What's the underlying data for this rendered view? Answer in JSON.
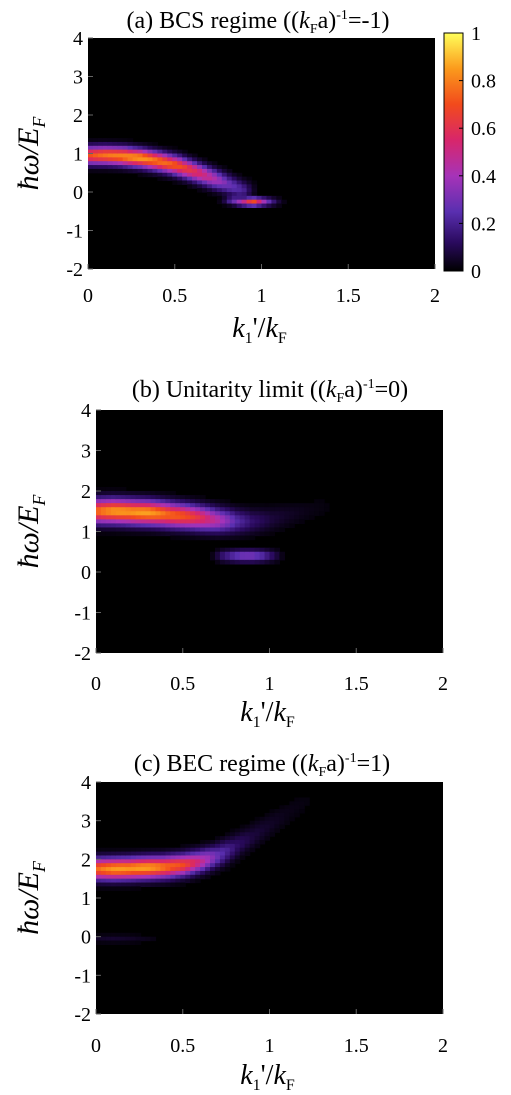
{
  "chart_data": [
    {
      "type": "heatmap",
      "title": "(a) BCS regime ((kFa)-1=-1)",
      "title_parts": {
        "pre": "(a) BCS regime ((",
        "k": "k",
        "sub": "F",
        "mid": "a)",
        "sup": "-1",
        "post": "=-1)"
      },
      "xlabel": "k1'/kF",
      "ylabel": "ħω/EF",
      "xlim": [
        0,
        2
      ],
      "ylim": [
        -2,
        4
      ],
      "xticks": [
        "0",
        "0.5",
        "1",
        "1.5",
        "2"
      ],
      "yticks": [
        "4",
        "3",
        "2",
        "1",
        "0",
        "-1",
        "-2"
      ],
      "colorbar": {
        "range": [
          0,
          1
        ],
        "ticks": [
          "1",
          "0.8",
          "0.6",
          "0.4",
          "0.2",
          "0"
        ]
      },
      "features": [
        {
          "x": [
            0,
            0.1,
            0.2,
            0.3,
            0.4,
            0.5,
            0.6,
            0.7,
            0.8,
            0.88
          ],
          "y": [
            0.95,
            0.95,
            0.93,
            0.88,
            0.8,
            0.7,
            0.55,
            0.38,
            0.2,
            0.05
          ],
          "width": 0.22,
          "intensity": [
            0.72,
            0.78,
            0.85,
            0.85,
            0.8,
            0.74,
            0.62,
            0.48,
            0.3,
            0.22
          ]
        },
        {
          "x": [
            0.85,
            0.9,
            0.95,
            1.0,
            1.05
          ],
          "y": [
            -0.22,
            -0.25,
            -0.25,
            -0.25,
            -0.25
          ],
          "width": 0.1,
          "intensity": [
            0.3,
            0.45,
            0.7,
            0.4,
            0.15
          ]
        }
      ]
    },
    {
      "type": "heatmap",
      "title": "(b) Unitarity limit ((kFa)-1=0)",
      "title_parts": {
        "pre": "(b)  Unitarity limit ((",
        "k": "k",
        "sub": "F",
        "mid": "a)",
        "sup": "-1",
        "post": "=0)"
      },
      "xlabel": "k1'/kF",
      "ylabel": "ħω/EF",
      "xlim": [
        0,
        2
      ],
      "ylim": [
        -2,
        4
      ],
      "xticks": [
        "0",
        "0.5",
        "1",
        "1.5",
        "2"
      ],
      "yticks": [
        "4",
        "3",
        "2",
        "1",
        "0",
        "-1",
        "-2"
      ],
      "features": [
        {
          "x": [
            0,
            0.1,
            0.2,
            0.3,
            0.4,
            0.5,
            0.6,
            0.7,
            0.8,
            0.9,
            1.0,
            1.1,
            1.2,
            1.3
          ],
          "y": [
            1.5,
            1.5,
            1.48,
            1.46,
            1.42,
            1.38,
            1.33,
            1.28,
            1.25,
            1.25,
            1.3,
            1.4,
            1.5,
            1.6
          ],
          "width": 0.28,
          "intensity": [
            0.78,
            0.85,
            0.88,
            0.86,
            0.8,
            0.72,
            0.62,
            0.45,
            0.25,
            0.14,
            0.08,
            0.05,
            0.03,
            0.02
          ]
        },
        {
          "x": [
            0.75,
            0.8,
            0.85,
            0.9,
            0.95,
            1.0
          ],
          "y": [
            0.4,
            0.4,
            0.4,
            0.4,
            0.4,
            0.4
          ],
          "width": 0.14,
          "intensity": [
            0.18,
            0.26,
            0.32,
            0.32,
            0.26,
            0.14
          ]
        }
      ]
    },
    {
      "type": "heatmap",
      "title": "(c) BEC regime ((kFa)-1=1)",
      "title_parts": {
        "pre": "(c)   BEC regime ((",
        "k": "k",
        "sub": "F",
        "mid": "a)",
        "sup": "-1",
        "post": "=1)"
      },
      "xlabel": "k1'/kF",
      "ylabel": "ħω/EF",
      "xlim": [
        0,
        2
      ],
      "ylim": [
        -2,
        4
      ],
      "xticks": [
        "0",
        "0.5",
        "1",
        "1.5",
        "2"
      ],
      "yticks": [
        "4",
        "3",
        "2",
        "1",
        "0",
        "-1",
        "-2"
      ],
      "features": [
        {
          "x": [
            0,
            0.1,
            0.2,
            0.3,
            0.4,
            0.5,
            0.6,
            0.7,
            0.8,
            0.9,
            1.0,
            1.1,
            1.2
          ],
          "y": [
            1.75,
            1.75,
            1.76,
            1.78,
            1.8,
            1.85,
            1.95,
            2.1,
            2.35,
            2.6,
            2.9,
            3.2,
            3.5
          ],
          "width": 0.26,
          "intensity": [
            0.78,
            0.85,
            0.88,
            0.86,
            0.8,
            0.7,
            0.5,
            0.28,
            0.14,
            0.08,
            0.05,
            0.03,
            0.02
          ]
        },
        {
          "x": [
            0,
            0.1,
            0.2,
            0.3
          ],
          "y": [
            -0.05,
            -0.05,
            -0.05,
            -0.05
          ],
          "width": 0.1,
          "intensity": [
            0.05,
            0.06,
            0.05,
            0.03
          ]
        }
      ]
    }
  ]
}
